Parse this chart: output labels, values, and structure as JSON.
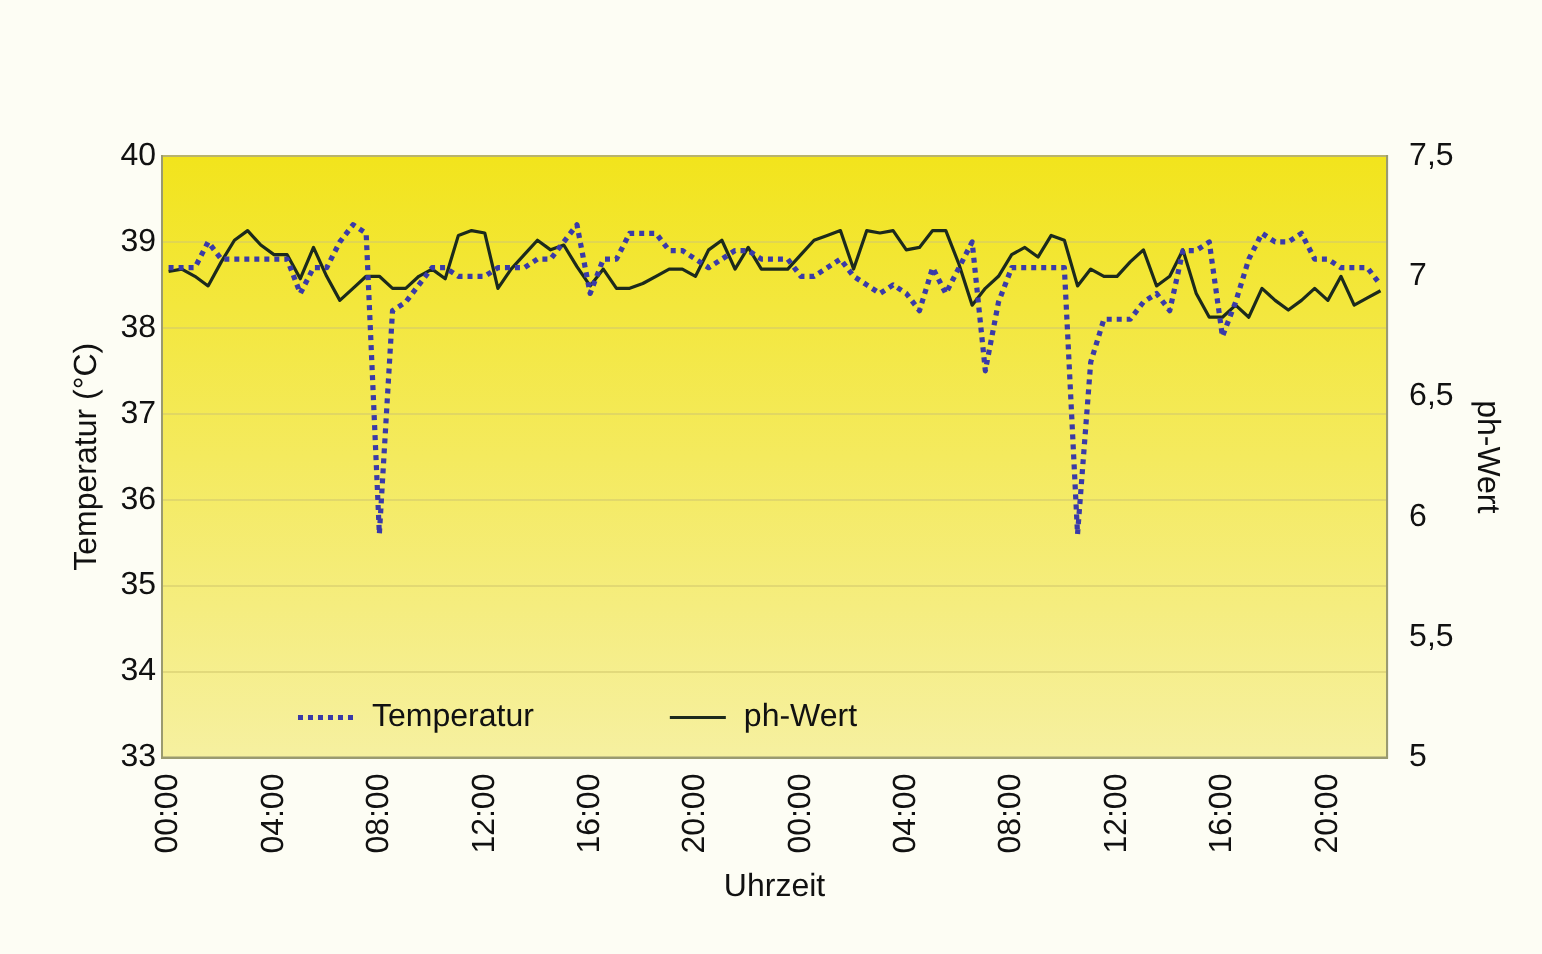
{
  "chart_data": {
    "type": "line",
    "xlabel": "Uhrzeit",
    "ylabel": "Temperatur (°C)",
    "y2label": "ph-Wert",
    "categories": [
      "00:00",
      null,
      null,
      null,
      null,
      null,
      null,
      null,
      "04:00",
      null,
      null,
      null,
      null,
      null,
      null,
      null,
      "08:00",
      null,
      null,
      null,
      null,
      null,
      null,
      null,
      "12:00",
      null,
      null,
      null,
      null,
      null,
      null,
      null,
      "16:00",
      null,
      null,
      null,
      null,
      null,
      null,
      null,
      "20:00",
      null,
      null,
      null,
      null,
      null,
      null,
      null,
      "00:00",
      null,
      null,
      null,
      null,
      null,
      null,
      null,
      "04:00",
      null,
      null,
      null,
      null,
      null,
      null,
      null,
      "08:00",
      null,
      null,
      null,
      null,
      null,
      null,
      null,
      "12:00",
      null,
      null,
      null,
      null,
      null,
      null,
      null,
      "16:00",
      null,
      null,
      null,
      null,
      null,
      null,
      null,
      "20:00",
      null,
      null,
      null,
      null
    ],
    "ylim": [
      33,
      40
    ],
    "yticks": [
      33,
      34,
      35,
      36,
      37,
      38,
      39,
      40
    ],
    "y2lim": [
      5,
      7.5
    ],
    "y2ticks": [
      5,
      {
        "value": 5.5,
        "label": "5,5"
      },
      6,
      {
        "value": 6.5,
        "label": "6,5"
      },
      7,
      {
        "value": 7.5,
        "label": "7,5"
      }
    ],
    "grid": "y",
    "legend": "bottom left",
    "marker": "none",
    "series": [
      {
        "name": "Temperatur",
        "color": "#3a3aa8",
        "line_style": "dotted",
        "values": [
          38.7,
          38.7,
          38.7,
          39.0,
          38.8,
          38.8,
          38.8,
          38.8,
          38.8,
          38.8,
          38.4,
          38.7,
          38.7,
          39.0,
          39.2,
          39.1,
          35.6,
          38.2,
          38.3,
          38.5,
          38.7,
          38.7,
          38.6,
          38.6,
          38.6,
          38.7,
          38.7,
          38.7,
          38.8,
          38.8,
          39.0,
          39.2,
          38.4,
          38.8,
          38.8,
          39.1,
          39.1,
          39.1,
          38.9,
          38.9,
          38.8,
          38.7,
          38.8,
          38.9,
          38.9,
          38.8,
          38.8,
          38.8,
          38.6,
          38.6,
          38.7,
          38.8,
          38.6,
          38.5,
          38.4,
          38.5,
          38.4,
          38.2,
          38.7,
          38.4,
          38.7,
          39.0,
          37.5,
          38.3,
          38.7,
          38.7,
          38.7,
          38.7,
          38.7,
          35.6,
          37.6,
          38.1,
          38.1,
          38.1,
          38.3,
          38.4,
          38.2,
          38.9,
          38.9,
          39.0,
          37.9,
          38.3,
          38.8,
          39.1,
          39.0,
          39.0,
          39.1,
          38.8,
          38.8,
          38.7,
          38.7,
          38.7,
          38.5
        ]
      },
      {
        "name": "ph-Wert",
        "color": "#1c2a1c",
        "line_style": "solid",
        "axis": "y2",
        "values": [
          7.02,
          7.03,
          7.0,
          6.96,
          7.06,
          7.15,
          7.19,
          7.13,
          7.09,
          7.09,
          6.99,
          7.12,
          7.0,
          6.9,
          6.95,
          7.0,
          7.0,
          6.95,
          6.95,
          7.0,
          7.03,
          6.99,
          7.17,
          7.19,
          7.18,
          6.95,
          7.03,
          7.09,
          7.15,
          7.11,
          7.13,
          7.04,
          6.96,
          7.03,
          6.95,
          6.95,
          6.97,
          7.0,
          7.03,
          7.03,
          7.0,
          7.11,
          7.15,
          7.03,
          7.12,
          7.03,
          7.03,
          7.03,
          7.09,
          7.15,
          7.17,
          7.19,
          7.03,
          7.19,
          7.18,
          7.19,
          7.11,
          7.12,
          7.19,
          7.19,
          7.05,
          6.88,
          6.95,
          7.0,
          7.09,
          7.12,
          7.08,
          7.17,
          7.15,
          6.96,
          7.03,
          7.0,
          7.0,
          7.06,
          7.11,
          6.96,
          7.0,
          7.11,
          6.93,
          6.83,
          6.83,
          6.88,
          6.83,
          6.95,
          6.9,
          6.86,
          6.9,
          6.95,
          6.9,
          7.0,
          6.88,
          6.91,
          6.94
        ]
      }
    ]
  }
}
